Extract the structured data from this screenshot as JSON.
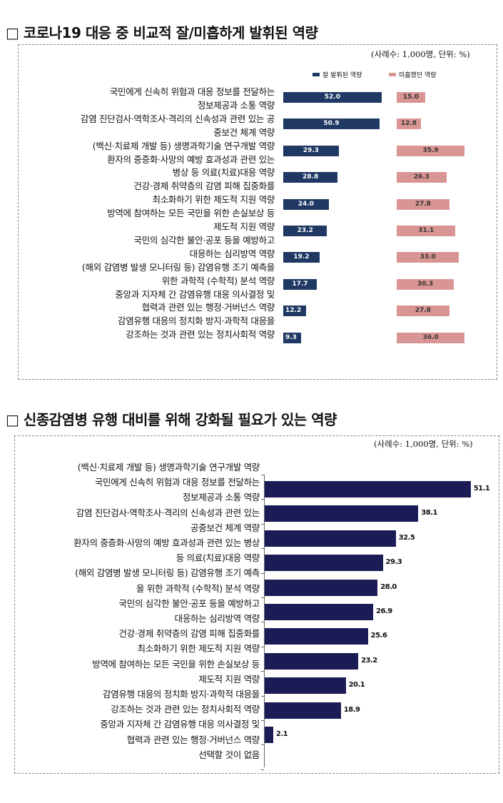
{
  "chart_data": [
    {
      "type": "bar",
      "orientation": "horizontal",
      "title": "□ 코로나19 대응 중 비교적 잘/미흡하게 발휘된 역량",
      "note": "(사례수: 1,000명, 단위: %)",
      "legend_position": "top-right",
      "label_lines": [
        "국민에게 신속히 위험과 대응 정보를 전달하는",
        "정보제공과 소통 역량",
        "감염 진단검사·역학조사·격리의 신속성과 관련 있는 공",
        "중보건 체계 역량",
        "(백신·치료제 개발 등) 생명과학기술 연구개발 역량",
        "환자의 중증화·사망의 예방 효과성과 관련 있는",
        "병상 등 의료(치료)대응 역량",
        "건강·경제 취약층의 감염 피해 집중화를",
        "최소화하기 위한 제도적 지원 역량",
        "방역에 참여하는 모든 국민을 위한 손실보상 등",
        "제도적 지원 역량",
        "국민의 심각한 불안·공포 등을 예방하고",
        "대응하는 심리방역 역량",
        "(해외 감염병 발생 모니터링 등) 감염유행 조기 예측을",
        "위한 과학적 (수학적) 분석 역량",
        "중앙과 지자체 간 감염유행 대응 의사결정 및",
        "협력과 관련 있는 행정·거버넌스 역량",
        "감염유행 대응의 정치화 방지·과학적 대응을",
        "강조하는 것과 관련 있는 정치사회적 역량"
      ],
      "series": [
        {
          "name": "잘 발휘된 역량",
          "color": "#1f3864",
          "values": [
            52.0,
            50.9,
            29.3,
            28.8,
            24.0,
            23.2,
            19.2,
            17.7,
            12.2,
            9.3
          ]
        },
        {
          "name": "미흡했던 역량",
          "color": "#d99594",
          "values": [
            15.0,
            12.8,
            35.9,
            26.3,
            27.8,
            31.1,
            33.0,
            30.3,
            27.8,
            36.0
          ]
        }
      ],
      "xlim": [
        0,
        60
      ]
    },
    {
      "type": "bar",
      "orientation": "horizontal",
      "title": "□ 신종감염병 유행 대비를 위해 강화될 필요가 있는 역량",
      "note": "(사례수: 1,000명, 단위: %)",
      "label_lines": [
        "(백신·치료제 개발 등) 생명과학기술 연구개발 역량",
        "국민에게 신속히 위험과 대응 정보를 전달하는",
        "정보제공과 소통 역량",
        "감염 진단검사·역학조사·격리의 신속성과 관련 있는",
        "공중보건 체계 역량",
        "환자의 중증화·사망의 예방 효과성과 관련 있는 병상",
        "등 의료(치료)대응 역량",
        "(해외 감염병 발생 모니터링 등) 감염유행 조기 예측",
        "을 위한 과학적 (수학적) 분석 역량",
        "국민의 심각한 불안·공포 등을 예방하고",
        "대응하는 심리방역 역량",
        "건강·경제 취약층의 감염 피해 집중화를",
        "최소화하기 위한 제도적 지원 역량",
        "방역에 참여하는 모든 국민을 위한 손실보상 등",
        "제도적 지원 역량",
        "감염유행 대응의 정치화 방지·과학적 대응을",
        "강조하는 것과 관련 있는 정치사회적 역량",
        "중앙과 지자체 간 감염유행 대응 의사결정 및",
        "협력과 관련 있는 행정·거버넌스 역량",
        "선택할 것이 없음"
      ],
      "series": [
        {
          "name": "강화 필요 역량",
          "color": "#1b1b55",
          "values": [
            51.1,
            38.1,
            32.5,
            29.3,
            28.0,
            26.9,
            25.6,
            23.2,
            20.1,
            18.9,
            2.1
          ]
        }
      ],
      "xlim": [
        0,
        60
      ]
    }
  ]
}
